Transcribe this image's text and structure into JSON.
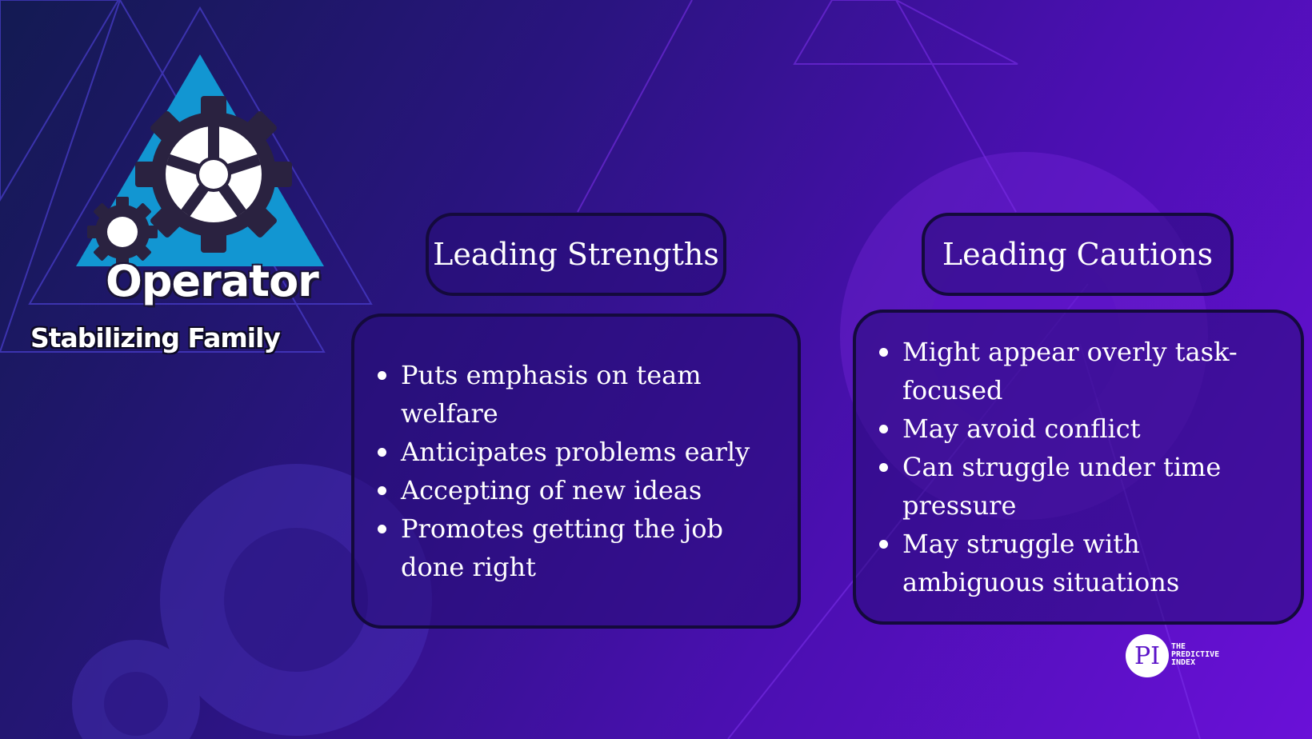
{
  "logo": {
    "title": "Operator",
    "subtitle": "Stabilizing Family",
    "icon": "gear-triangle-icon"
  },
  "strengths": {
    "heading": "Leading Strengths",
    "items": [
      "Puts emphasis on team welfare",
      "Anticipates problems early",
      "Accepting of new ideas",
      "Promotes getting the job done right"
    ]
  },
  "cautions": {
    "heading": "Leading Cautions",
    "items": [
      "Might appear overly task-focused",
      "May avoid conflict",
      "Can struggle under time pressure",
      "May struggle with ambiguous situations"
    ]
  },
  "brand": {
    "mark": "PI",
    "line1": "THE",
    "line2": "PREDICTIVE",
    "line3": "INDEX"
  },
  "colors": {
    "triangle": "#1296d2",
    "gear": "#2a2240",
    "card_border": "#140a3c"
  }
}
